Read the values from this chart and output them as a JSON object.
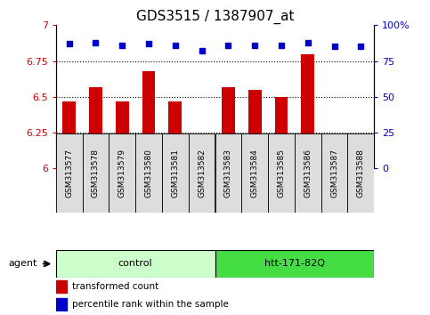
{
  "title": "GDS3515 / 1387907_at",
  "samples": [
    "GSM313577",
    "GSM313578",
    "GSM313579",
    "GSM313580",
    "GSM313581",
    "GSM313582",
    "GSM313583",
    "GSM313584",
    "GSM313585",
    "GSM313586",
    "GSM313587",
    "GSM313588"
  ],
  "bar_values": [
    6.47,
    6.57,
    6.47,
    6.68,
    6.47,
    6.16,
    6.57,
    6.55,
    6.5,
    6.8,
    6.18,
    6.16
  ],
  "dot_values": [
    87,
    88,
    86,
    87,
    86,
    82,
    86,
    86,
    86,
    88,
    85,
    85
  ],
  "ylim_left": [
    6.0,
    7.0
  ],
  "ylim_right": [
    0,
    100
  ],
  "yticks_left": [
    6.0,
    6.25,
    6.5,
    6.75,
    7.0
  ],
  "yticks_right": [
    0,
    25,
    50,
    75,
    100
  ],
  "ytick_labels_left": [
    "6",
    "6.25",
    "6.5",
    "6.75",
    "7"
  ],
  "ytick_labels_right": [
    "0",
    "25",
    "50",
    "75",
    "100%"
  ],
  "bar_color": "#cc0000",
  "dot_color": "#0000cc",
  "group1_label": "control",
  "group2_label": "htt-171-82Q",
  "group1_color": "#ccffcc",
  "group2_color": "#44dd44",
  "agent_label": "agent",
  "legend_bar_label": "transformed count",
  "legend_dot_label": "percentile rank within the sample",
  "bg_color": "#ffffff",
  "sample_box_color": "#dddddd",
  "title_fontsize": 11,
  "tick_fontsize": 8,
  "bar_width": 0.5
}
